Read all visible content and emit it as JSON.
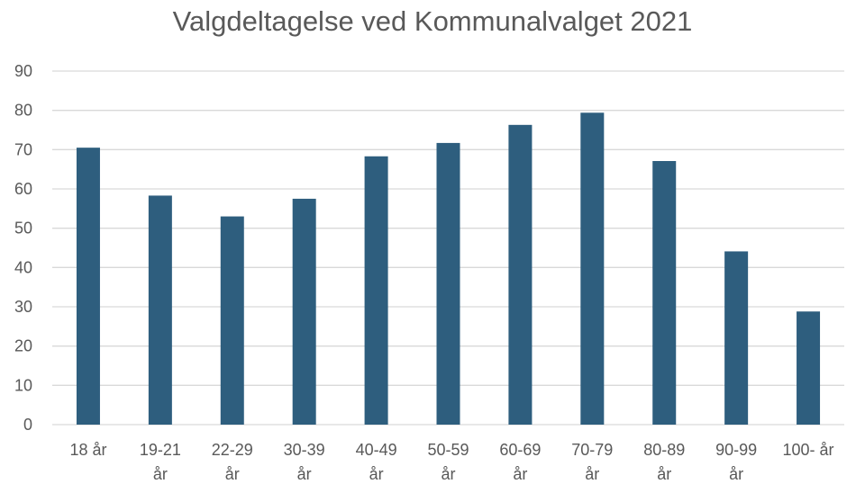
{
  "chart_data": {
    "type": "bar",
    "title": "Valgdeltagelse ved Kommunalvalget 2021",
    "xlabel": "",
    "ylabel": "",
    "categories": [
      [
        "18 år"
      ],
      [
        "19-21",
        "år"
      ],
      [
        "22-29",
        "år"
      ],
      [
        "30-39",
        "år"
      ],
      [
        "40-49",
        "år"
      ],
      [
        "50-59",
        "år"
      ],
      [
        "60-69",
        "år"
      ],
      [
        "70-79",
        "år"
      ],
      [
        "80-89",
        "år"
      ],
      [
        "90-99",
        "år"
      ],
      [
        "100- år"
      ]
    ],
    "values": [
      70.5,
      58.3,
      53.0,
      57.5,
      68.3,
      71.7,
      76.3,
      79.4,
      67.1,
      44.1,
      28.8
    ],
    "ylim": [
      0,
      90
    ],
    "yticks": [
      "0",
      "10",
      "20",
      "30",
      "40",
      "50",
      "60",
      "70",
      "80",
      "90"
    ],
    "grid": true,
    "legend": "none",
    "bar_color": "#2e5e7e"
  }
}
